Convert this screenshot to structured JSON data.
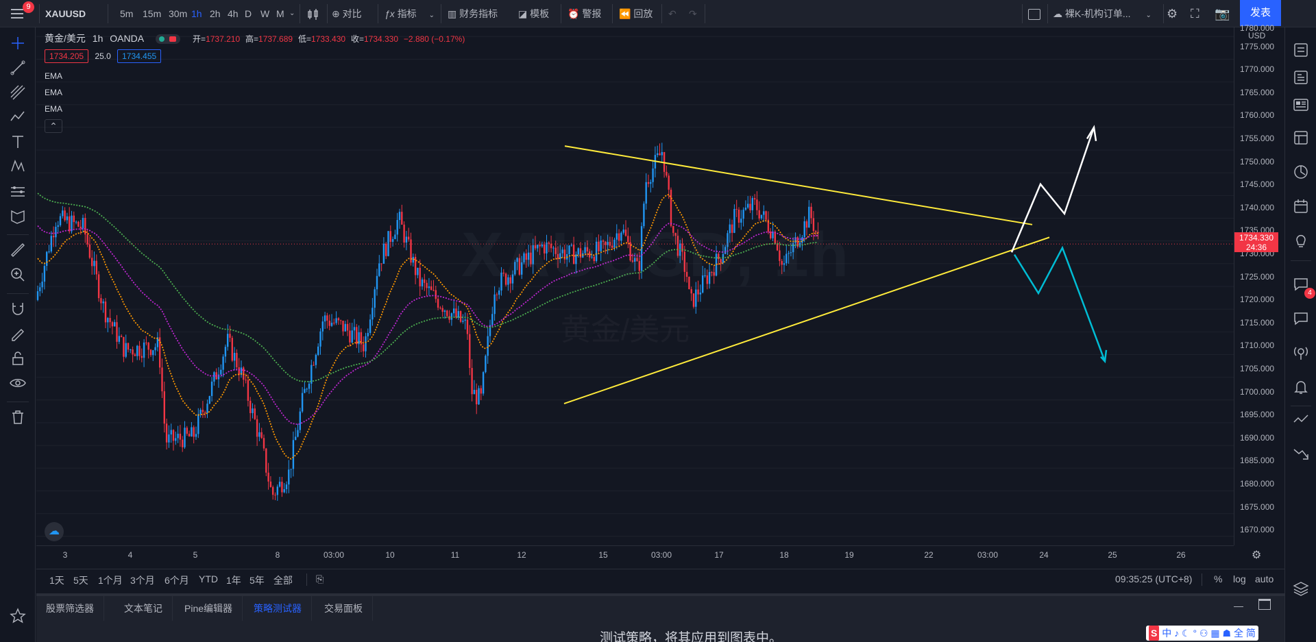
{
  "topbar": {
    "menu_badge": "9",
    "symbol": "XAUUSD",
    "intervals": [
      "5m",
      "15m",
      "30m",
      "1h",
      "2h",
      "4h",
      "D",
      "W",
      "M"
    ],
    "active_interval": "1h",
    "compare_label": "对比",
    "indicators_label": "指标",
    "financials_label": "财务指标",
    "templates_label": "模板",
    "alert_label": "警报",
    "replay_label": "回放",
    "layout_name": "裸K-机构订单...",
    "publish_label": "发表"
  },
  "legend": {
    "title": "黄金/美元",
    "interval": "1h",
    "source": "OANDA",
    "open_label": "开=",
    "open": "1737.210",
    "high_label": "高=",
    "high": "1737.689",
    "low_label": "低=",
    "low": "1733.430",
    "close_label": "收=",
    "close": "1734.330",
    "change": "−2.880 (−0.17%)",
    "bid": "1734.205",
    "spread": "25.0",
    "ask": "1734.455",
    "indicators": [
      "EMA",
      "EMA",
      "EMA"
    ]
  },
  "watermark": {
    "symbol": "XAUUSD, 1h",
    "name": "黄金/美元"
  },
  "price_axis": {
    "currency_top": "1780.000",
    "currency": "USD",
    "labels": [
      "1775.000",
      "1770.000",
      "1765.000",
      "1760.000",
      "1755.000",
      "1750.000",
      "1745.000",
      "1740.000",
      "1735.000",
      "1730.000",
      "1725.000",
      "1720.000",
      "1715.000",
      "1710.000",
      "1705.000",
      "1700.000",
      "1695.000",
      "1690.000",
      "1685.000",
      "1680.000",
      "1675.000",
      "1670.000"
    ],
    "last_price": "1734.330",
    "countdown": "24:36"
  },
  "time_axis": {
    "labels": [
      "3",
      "4",
      "5",
      "8",
      "03:00",
      "10",
      "11",
      "12",
      "15",
      "03:00",
      "17",
      "18",
      "19",
      "22",
      "03:00",
      "24",
      "25",
      "26"
    ]
  },
  "range_bar": {
    "ranges": [
      "1天",
      "5天",
      "1个月",
      "3个月",
      "6个月",
      "YTD",
      "1年",
      "5年",
      "全部"
    ],
    "clock": "09:35:25 (UTC+8)",
    "percent_label": "%",
    "log_label": "log",
    "auto_label": "auto"
  },
  "bottom_panel": {
    "tabs": [
      "股票筛选器",
      "文本笔记",
      "Pine编辑器",
      "策略测试器",
      "交易面板"
    ],
    "active_tab": "策略测试器",
    "message": "测试策略，将其应用到图表中。"
  },
  "ime": {
    "text": "中 ♪ ☾ ° ⚇ ▦ ☗ 全 简"
  },
  "right_badge": "4",
  "chart_data": {
    "type": "candlestick",
    "symbol": "XAUUSD",
    "timeframe": "1h",
    "ylim": [
      1668,
      1782
    ],
    "last_price": 1734.33,
    "overlay_lines": {
      "ema_colors": [
        "#ff9800",
        "#c026d3",
        "#4caf50"
      ]
    },
    "key_levels": [
      {
        "label": "low",
        "value": 1677
      },
      {
        "label": "swing high",
        "value": 1756
      },
      {
        "label": "triangle low",
        "value": 1699
      }
    ]
  },
  "colors": {
    "up": "#2196f3",
    "down": "#f23645",
    "trendline": "#ffeb3b",
    "bull_path": "#ffffff",
    "bear_path": "#00bcd4",
    "accent": "#2962ff"
  }
}
